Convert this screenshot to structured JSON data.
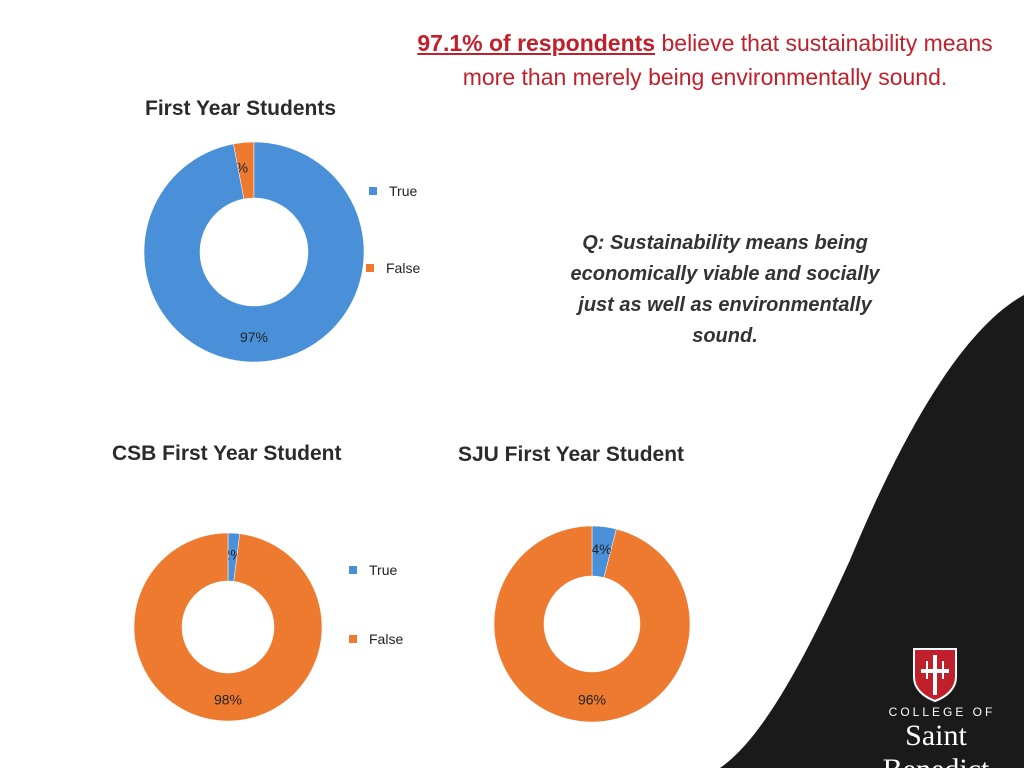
{
  "colors": {
    "true": "#4a90d9",
    "false": "#ee7a30",
    "accent_red": "#c0202b",
    "dark": "#1a1a1a"
  },
  "headline": {
    "emphasis": "97.1% of respondents",
    "rest": "believe that sustainability means more than merely being environmentally sound."
  },
  "question": "Q: Sustainability means being economically viable and socially just as well as environmentally sound.",
  "logo": {
    "line1": "COLLEGE OF",
    "line2": "Saint Benedict",
    "icon": "cross-shield-icon"
  },
  "chart_data": [
    {
      "type": "pie",
      "title": "First Year Students",
      "categories": [
        "True",
        "False"
      ],
      "values": [
        97,
        3
      ],
      "labels": [
        "97%",
        "3%"
      ],
      "legend": [
        "True",
        "False"
      ],
      "legend_placement": "right"
    },
    {
      "type": "pie",
      "title": "CSB First Year Student",
      "categories": [
        "True",
        "False"
      ],
      "values": [
        2,
        98
      ],
      "labels": [
        "2%",
        "98%"
      ],
      "legend": [
        "True",
        "False"
      ],
      "legend_placement": "right"
    },
    {
      "type": "pie",
      "title": "SJU First Year Student",
      "categories": [
        "True",
        "False"
      ],
      "values": [
        4,
        96
      ],
      "labels": [
        "4%",
        "96%"
      ]
    }
  ]
}
